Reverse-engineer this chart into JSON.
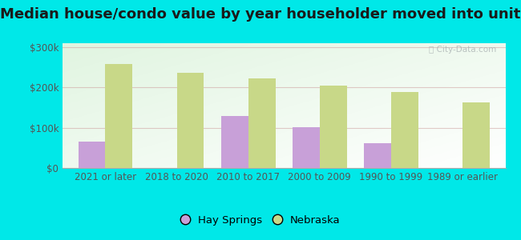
{
  "title": "Median house/condo value by year householder moved into unit",
  "categories": [
    "2021 or later",
    "2018 to 2020",
    "2010 to 2017",
    "2000 to 2009",
    "1990 to 1999",
    "1989 or earlier"
  ],
  "hay_springs": [
    65000,
    0,
    130000,
    102000,
    62000,
    0
  ],
  "nebraska": [
    258000,
    237000,
    222000,
    205000,
    188000,
    162000
  ],
  "hay_springs_color": "#c8a0d8",
  "nebraska_color": "#c8d888",
  "background_color": "#00e8e8",
  "ylim": [
    0,
    310000
  ],
  "yticks": [
    0,
    100000,
    200000,
    300000
  ],
  "ytick_labels": [
    "$0",
    "$100k",
    "$200k",
    "$300k"
  ],
  "bar_width": 0.38,
  "legend_hay": "Hay Springs",
  "legend_nebraska": "Nebraska",
  "watermark": "City-Data.com",
  "title_fontsize": 13,
  "tick_fontsize": 8.5,
  "grid_color": "#cc9999",
  "grid_alpha": 0.5
}
